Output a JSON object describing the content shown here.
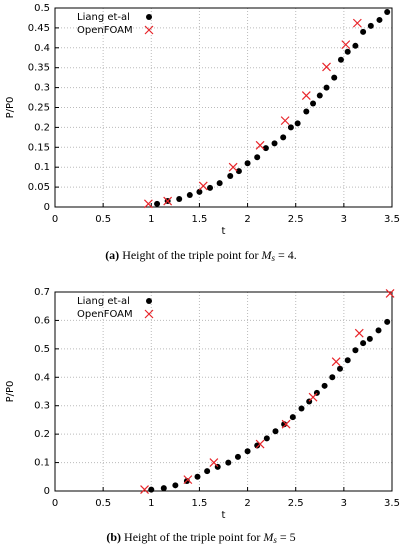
{
  "chart_data": [
    {
      "type": "scatter",
      "xlabel": "t",
      "ylabel": "P/P0",
      "xlim": [
        0,
        3.5
      ],
      "xticks": [
        0,
        0.5,
        1,
        1.5,
        2,
        2.5,
        3,
        3.5
      ],
      "ylim": [
        0,
        0.5
      ],
      "yticks": [
        0,
        0.05,
        0.1,
        0.15,
        0.2,
        0.25,
        0.3,
        0.35,
        0.4,
        0.45,
        0.5
      ],
      "grid": true,
      "legend": "upper left",
      "caption_label": "(a)",
      "caption_text": "Height of the triple point for",
      "caption_math": "M",
      "caption_sub": "s",
      "caption_end": "= 4.",
      "series": [
        {
          "name": "Liang et-al",
          "color": "#000000",
          "marker": "dot",
          "x": [
            1.06,
            1.17,
            1.29,
            1.4,
            1.5,
            1.61,
            1.71,
            1.82,
            1.91,
            2.0,
            2.1,
            2.19,
            2.28,
            2.37,
            2.45,
            2.52,
            2.61,
            2.68,
            2.75,
            2.82,
            2.9,
            2.97,
            3.04,
            3.12,
            3.2,
            3.28,
            3.37,
            3.45
          ],
          "values": [
            0.008,
            0.015,
            0.02,
            0.03,
            0.038,
            0.048,
            0.06,
            0.078,
            0.09,
            0.11,
            0.125,
            0.148,
            0.16,
            0.175,
            0.2,
            0.21,
            0.24,
            0.26,
            0.28,
            0.3,
            0.325,
            0.37,
            0.39,
            0.405,
            0.44,
            0.455,
            0.47,
            0.49
          ]
        },
        {
          "name": "OpenFOAM",
          "color": "#e8252a",
          "marker": "cross",
          "x": [
            0.97,
            1.17,
            1.54,
            1.85,
            2.13,
            2.39,
            2.61,
            2.82,
            3.02,
            3.14
          ],
          "values": [
            0.008,
            0.015,
            0.053,
            0.1,
            0.155,
            0.217,
            0.28,
            0.352,
            0.408,
            0.462
          ]
        }
      ]
    },
    {
      "type": "scatter",
      "xlabel": "t",
      "ylabel": "P/P0",
      "xlim": [
        0,
        3.5
      ],
      "xticks": [
        0,
        0.5,
        1,
        1.5,
        2,
        2.5,
        3,
        3.5
      ],
      "ylim": [
        0,
        0.7
      ],
      "yticks": [
        0,
        0.1,
        0.2,
        0.3,
        0.4,
        0.5,
        0.6,
        0.7
      ],
      "grid": true,
      "legend": "upper left",
      "caption_label": "(b)",
      "caption_text": "Height of the triple point for",
      "caption_math": "M",
      "caption_sub": "s",
      "caption_end": "= 5",
      "series": [
        {
          "name": "Liang et-al",
          "color": "#000000",
          "marker": "dot",
          "x": [
            1.0,
            1.13,
            1.25,
            1.37,
            1.48,
            1.58,
            1.69,
            1.8,
            1.9,
            2.0,
            2.1,
            2.2,
            2.29,
            2.38,
            2.47,
            2.56,
            2.64,
            2.72,
            2.8,
            2.88,
            2.96,
            3.04,
            3.12,
            3.2,
            3.27,
            3.36,
            3.45
          ],
          "values": [
            0.005,
            0.01,
            0.02,
            0.035,
            0.05,
            0.07,
            0.085,
            0.1,
            0.12,
            0.14,
            0.16,
            0.185,
            0.21,
            0.235,
            0.26,
            0.29,
            0.315,
            0.345,
            0.37,
            0.4,
            0.43,
            0.46,
            0.495,
            0.52,
            0.535,
            0.565,
            0.595
          ]
        },
        {
          "name": "OpenFOAM",
          "color": "#e8252a",
          "marker": "cross",
          "x": [
            0.93,
            1.38,
            1.65,
            2.13,
            2.4,
            2.68,
            2.92,
            3.16,
            3.48
          ],
          "values": [
            0.005,
            0.04,
            0.1,
            0.165,
            0.235,
            0.33,
            0.455,
            0.555,
            0.695
          ]
        }
      ]
    }
  ]
}
